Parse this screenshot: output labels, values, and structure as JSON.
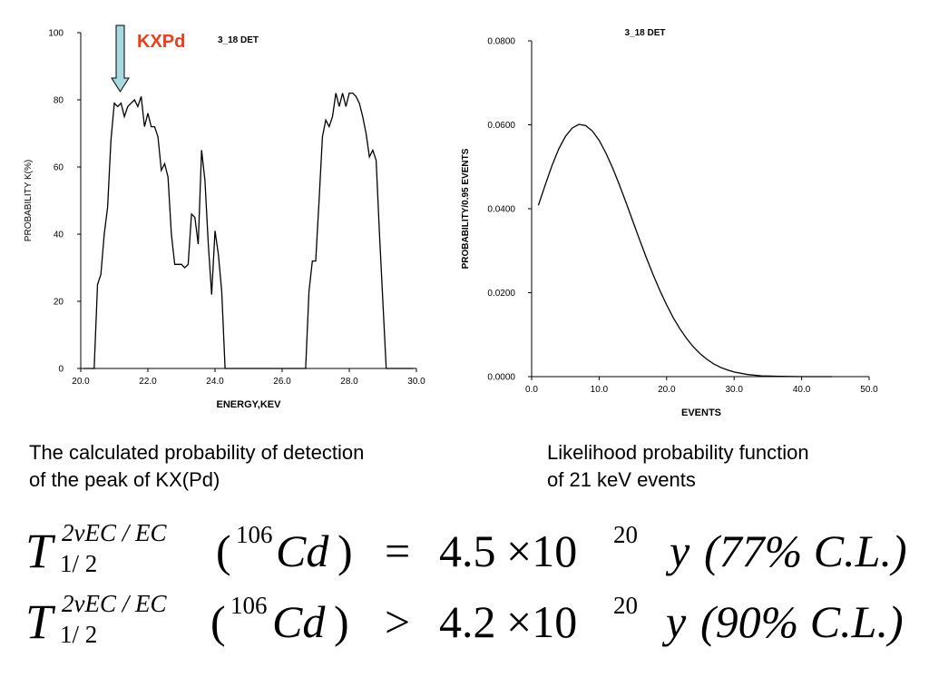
{
  "chart_data": [
    {
      "type": "line",
      "title": "3_18 DET",
      "annotation": "KXPd",
      "annotation_color": "#e8401c",
      "arrow_color": "#a8d8e0",
      "xlabel": "ENERGY,KEV",
      "ylabel": "PROBABILITY K(%)",
      "xlim": [
        20.0,
        30.0
      ],
      "ylim": [
        0,
        100
      ],
      "xticks": [
        20.0,
        22.0,
        24.0,
        26.0,
        28.0,
        30.0
      ],
      "xtick_labels": [
        "20.0",
        "22.0",
        "24.0",
        "26.0",
        "28.0",
        "30.0"
      ],
      "yticks": [
        0,
        20,
        40,
        60,
        80,
        100
      ],
      "ytick_labels": [
        "0",
        "20",
        "40",
        "60",
        "80",
        "100"
      ],
      "series": [
        {
          "x": [
            20.1,
            20.4,
            20.5,
            20.6,
            20.7,
            20.8,
            20.9,
            21.0,
            21.1,
            21.2,
            21.3,
            21.4,
            21.5,
            21.6,
            21.7,
            21.8,
            21.9,
            22.0,
            22.1,
            22.2,
            22.3,
            22.4,
            22.5,
            22.6,
            22.7,
            22.8,
            22.9,
            23.0,
            23.1,
            23.2,
            23.3,
            23.4,
            23.5,
            23.6,
            23.7,
            23.8,
            23.9,
            24.0,
            24.1,
            24.2,
            24.3,
            24.5,
            24.6,
            25.5,
            26.5,
            26.7,
            26.8,
            26.9,
            27.0,
            27.1,
            27.2,
            27.3,
            27.4,
            27.5,
            27.6,
            27.7,
            27.8,
            27.9,
            28.0,
            28.1,
            28.2,
            28.3,
            28.4,
            28.5,
            28.6,
            28.7,
            28.8,
            28.9,
            29.0,
            29.1,
            29.2,
            29.5,
            29.9
          ],
          "y": [
            0,
            0,
            25,
            28,
            40,
            48,
            68,
            79,
            78,
            79,
            75,
            78,
            79,
            80,
            78,
            81,
            72,
            76,
            72,
            72,
            69,
            59,
            61,
            57,
            40,
            31,
            31,
            31,
            30,
            31,
            46,
            45,
            37,
            65,
            56,
            37,
            22,
            41,
            34,
            23,
            0,
            0,
            0,
            0,
            0,
            0,
            23,
            32,
            32,
            50,
            69,
            74,
            72,
            75,
            82,
            78,
            82,
            78,
            82,
            82,
            81,
            79,
            75,
            70,
            63,
            65,
            62,
            40,
            20,
            0,
            0,
            0,
            0
          ]
        }
      ]
    },
    {
      "type": "line",
      "title": "3_18 DET",
      "xlabel": "EVENTS",
      "ylabel": "PROBABILITY/0.95 EVENTS",
      "xlim": [
        0.0,
        50.0
      ],
      "ylim": [
        0.0,
        0.08
      ],
      "xticks": [
        0.0,
        10.0,
        20.0,
        30.0,
        40.0,
        50.0
      ],
      "xtick_labels": [
        "0.0",
        "10.0",
        "20.0",
        "30.0",
        "40.0",
        "50.0"
      ],
      "yticks": [
        0.0,
        0.02,
        0.04,
        0.06,
        0.08
      ],
      "ytick_labels": [
        "0.0000",
        "0.0200",
        "0.0400",
        "0.0600",
        "0.0800"
      ],
      "series": [
        {
          "x": [
            1,
            2,
            3,
            4,
            5,
            6,
            7,
            8,
            9,
            10,
            11,
            12,
            13,
            14,
            15,
            16,
            17,
            18,
            19,
            20,
            21,
            22,
            23,
            24,
            25,
            26,
            27,
            28,
            29,
            30,
            32,
            34,
            36,
            38,
            40,
            42,
            44.5
          ],
          "y": [
            0.0408,
            0.0456,
            0.0502,
            0.0542,
            0.0572,
            0.0592,
            0.0601,
            0.0598,
            0.0585,
            0.0563,
            0.0533,
            0.0497,
            0.0457,
            0.0414,
            0.037,
            0.0326,
            0.0283,
            0.0243,
            0.0205,
            0.0171,
            0.014,
            0.0113,
            0.009,
            0.007,
            0.0054,
            0.0041,
            0.003,
            0.0022,
            0.0016,
            0.0011,
            0.0005,
            0.0002,
            0.0001,
            4e-05,
            1e-05,
            0.0,
            0.0
          ]
        }
      ]
    }
  ],
  "captions": {
    "left": "The calculated probability of detection\nof the peak of KX(Pd)",
    "right": "Likelihood probability function\nof 21 keV events"
  },
  "equations": [
    {
      "T": "T",
      "sup": "2νEC / EC",
      "sub": "1/ 2",
      "lp": "(",
      "mass": "106",
      "elem": "Cd",
      "rp": ")",
      "rel": "=",
      "mant": "4.5",
      "times": "×10",
      "exp": "20",
      "unit": "y",
      "cl": "(77% C.L.)"
    },
    {
      "T": "T",
      "sup": "2νEC / EC",
      "sub": "1/ 2",
      "lp": "(",
      "mass": "106",
      "elem": "Cd",
      "rp": ")",
      "rel": ">",
      "mant": "4.2",
      "times": "×10",
      "exp": "20",
      "unit": "y",
      "cl": "(90% C.L.)"
    }
  ]
}
